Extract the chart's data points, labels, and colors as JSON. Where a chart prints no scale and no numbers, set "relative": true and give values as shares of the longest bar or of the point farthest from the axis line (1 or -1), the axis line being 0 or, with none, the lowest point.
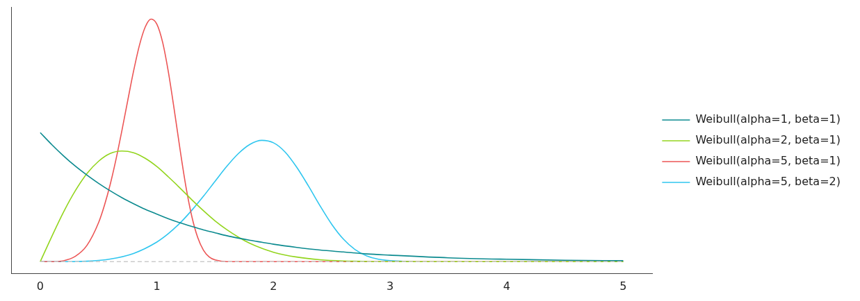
{
  "chart_data": {
    "type": "line",
    "relative": true,
    "xlim": [
      -0.25,
      5.25
    ],
    "xticks": [
      0,
      1,
      2,
      3,
      4,
      5
    ],
    "legend": "right",
    "marker": "none",
    "line_style": "solid",
    "grid": false,
    "ref_lines": [
      {
        "axis": "y",
        "value": 0,
        "color": "#cccccc",
        "line_style": "dashed"
      }
    ],
    "series": [
      {
        "name": "Weibull(alpha=1, beta=1)",
        "color": "#0b8a8f",
        "x": [
          0,
          0.1,
          0.2,
          0.3,
          0.4,
          0.5,
          0.6,
          0.7,
          0.8,
          0.9,
          1,
          1.1,
          1.2,
          1.3,
          1.4,
          1.5,
          1.6,
          1.7,
          1.8,
          1.9,
          2,
          2.2,
          2.4,
          2.6,
          2.8,
          3,
          3.5,
          4,
          4.5,
          5
        ],
        "values": [
          0.532,
          0.482,
          0.436,
          0.394,
          0.357,
          0.323,
          0.292,
          0.264,
          0.239,
          0.216,
          0.196,
          0.177,
          0.16,
          0.145,
          0.131,
          0.119,
          0.107,
          0.097,
          0.088,
          0.08,
          0.072,
          0.059,
          0.048,
          0.04,
          0.032,
          0.027,
          0.016,
          0.01,
          0.006,
          0.004
        ]
      },
      {
        "name": "Weibull(alpha=2, beta=1)",
        "color": "#93d51e",
        "x": [
          0,
          0.1,
          0.2,
          0.3,
          0.4,
          0.5,
          0.6,
          0.7,
          0.8,
          0.9,
          1,
          1.1,
          1.2,
          1.3,
          1.4,
          1.5,
          1.6,
          1.7,
          1.8,
          1.9,
          2,
          2.2,
          2.4,
          2.6,
          2.8,
          3,
          3.5,
          4,
          4.5,
          5
        ],
        "values": [
          0,
          0.105,
          0.205,
          0.292,
          0.363,
          0.414,
          0.446,
          0.456,
          0.449,
          0.426,
          0.392,
          0.349,
          0.303,
          0.255,
          0.21,
          0.168,
          0.132,
          0.101,
          0.075,
          0.055,
          0.039,
          0.019,
          0.008,
          0.003,
          0.001,
          0,
          0,
          0,
          0,
          0
        ]
      },
      {
        "name": "Weibull(alpha=5, beta=1)",
        "color": "#ec5555",
        "x": [
          0,
          0.1,
          0.2,
          0.3,
          0.4,
          0.5,
          0.55,
          0.6,
          0.65,
          0.7,
          0.75,
          0.8,
          0.85,
          0.9,
          0.95,
          1,
          1.05,
          1.1,
          1.15,
          1.2,
          1.25,
          1.3,
          1.35,
          1.4,
          1.45,
          1.5,
          1.6,
          1.8,
          2,
          3,
          4,
          5
        ],
        "values": [
          0,
          0,
          0.004,
          0.022,
          0.067,
          0.161,
          0.232,
          0.319,
          0.423,
          0.54,
          0.664,
          0.785,
          0.891,
          0.967,
          1,
          0.979,
          0.903,
          0.778,
          0.623,
          0.459,
          0.307,
          0.186,
          0.1,
          0.047,
          0.019,
          0.007,
          0,
          0,
          0,
          0,
          0,
          0
        ]
      },
      {
        "name": "Weibull(alpha=5, beta=2)",
        "color": "#2fc6ef",
        "x": [
          0,
          0.2,
          0.4,
          0.6,
          0.8,
          1,
          1.1,
          1.2,
          1.3,
          1.4,
          1.5,
          1.6,
          1.7,
          1.8,
          1.9,
          2,
          2.1,
          2.2,
          2.3,
          2.4,
          2.5,
          2.6,
          2.7,
          2.8,
          2.9,
          3,
          3.2
        ],
        "values": [
          0,
          0,
          0.002,
          0.011,
          0.034,
          0.081,
          0.116,
          0.16,
          0.212,
          0.27,
          0.332,
          0.393,
          0.446,
          0.484,
          0.5,
          0.49,
          0.452,
          0.389,
          0.312,
          0.23,
          0.154,
          0.093,
          0.05,
          0.024,
          0.01,
          0.004,
          0
        ]
      }
    ]
  }
}
